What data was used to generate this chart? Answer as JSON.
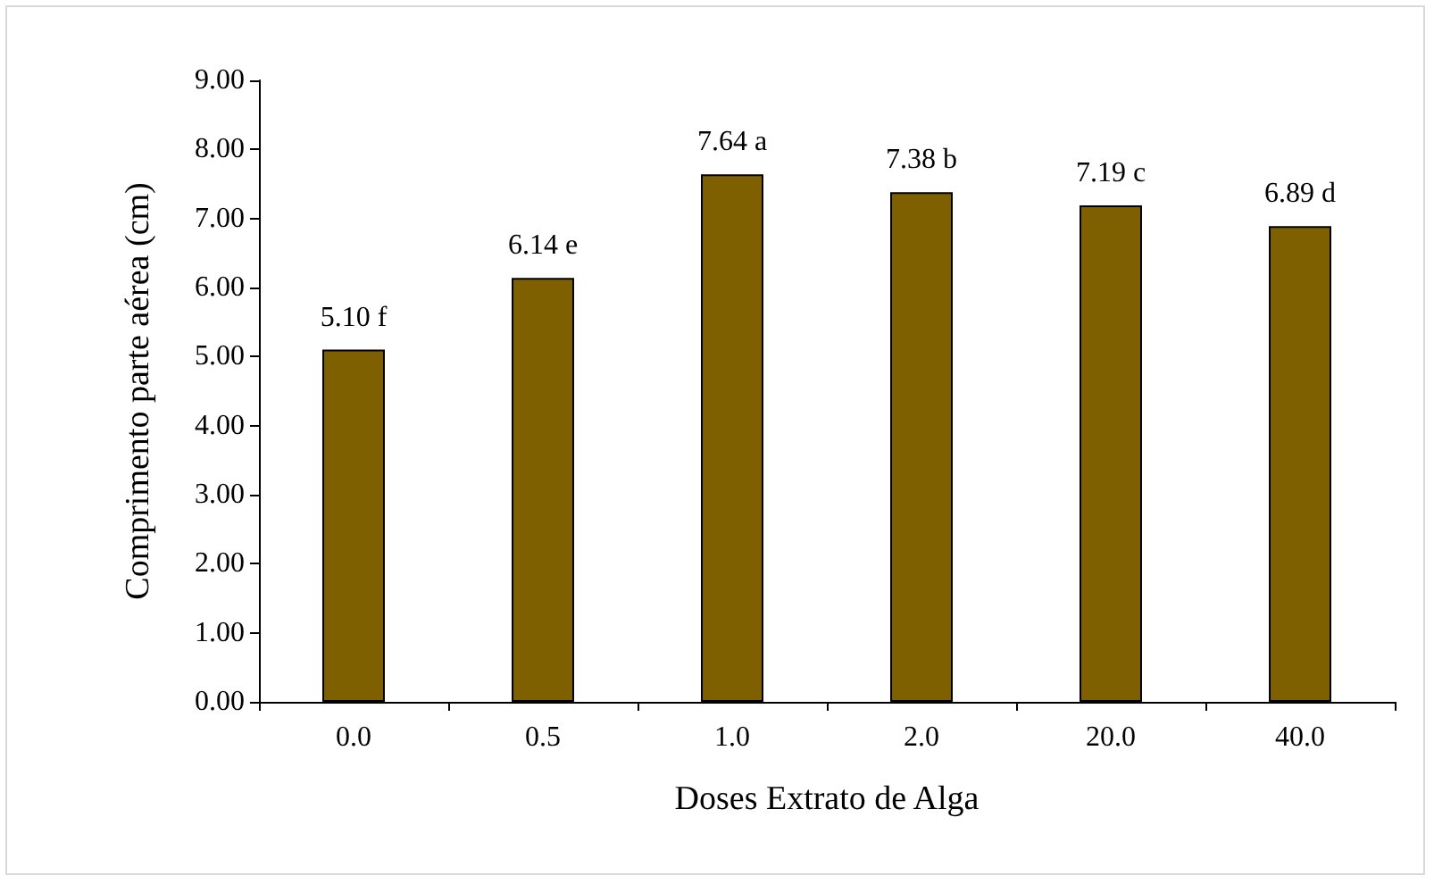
{
  "chart_data": {
    "type": "bar",
    "xlabel": "Doses Extrato de Alga",
    "ylabel": "Comprimento parte aérea (cm)",
    "categories": [
      "0.0",
      "0.5",
      "1.0",
      "2.0",
      "20.0",
      "40.0"
    ],
    "values": [
      5.1,
      6.14,
      7.64,
      7.38,
      7.19,
      6.89
    ],
    "value_labels": [
      "5.10 f",
      "6.14 e",
      "7.64 a",
      "7.38 b",
      "7.19 c",
      "6.89 d"
    ],
    "color": "#7f6000",
    "ylim": [
      0,
      9
    ],
    "yticks": [
      {
        "value": 0,
        "label": "0.00"
      },
      {
        "value": 1,
        "label": "1.00"
      },
      {
        "value": 2,
        "label": "2.00"
      },
      {
        "value": 3,
        "label": "3.00"
      },
      {
        "value": 4,
        "label": "4.00"
      },
      {
        "value": 5,
        "label": "5.00"
      },
      {
        "value": 6,
        "label": "6.00"
      },
      {
        "value": 7,
        "label": "7.00"
      },
      {
        "value": 8,
        "label": "8.00"
      },
      {
        "value": 9,
        "label": "9.00"
      }
    ],
    "grid": false
  }
}
